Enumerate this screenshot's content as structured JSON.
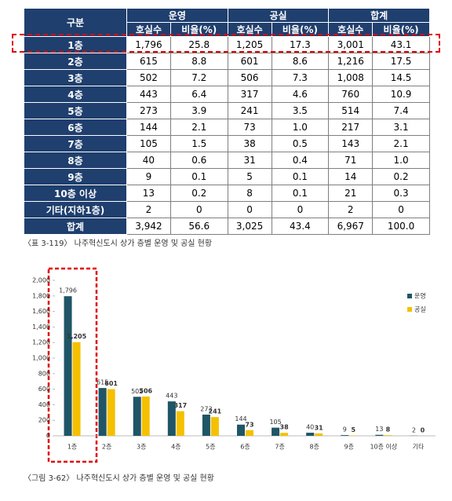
{
  "table": {
    "header": {
      "corner": "구분",
      "groups": [
        "운영",
        "공실",
        "합계"
      ],
      "sub": [
        "호실수",
        "비율(%)",
        "호실수",
        "비율(%)",
        "호실수",
        "비율(%)"
      ]
    },
    "rows": [
      [
        "1층",
        "1,796",
        "25.8",
        "1,205",
        "17.3",
        "3,001",
        "43.1"
      ],
      [
        "2층",
        "615",
        "8.8",
        "601",
        "8.6",
        "1,216",
        "17.5"
      ],
      [
        "3층",
        "502",
        "7.2",
        "506",
        "7.3",
        "1,008",
        "14.5"
      ],
      [
        "4층",
        "443",
        "6.4",
        "317",
        "4.6",
        "760",
        "10.9"
      ],
      [
        "5층",
        "273",
        "3.9",
        "241",
        "3.5",
        "514",
        "7.4"
      ],
      [
        "6층",
        "144",
        "2.1",
        "73",
        "1.0",
        "217",
        "3.1"
      ],
      [
        "7층",
        "105",
        "1.5",
        "38",
        "0.5",
        "143",
        "2.1"
      ],
      [
        "8층",
        "40",
        "0.6",
        "31",
        "0.4",
        "71",
        "1.0"
      ],
      [
        "9층",
        "9",
        "0.1",
        "5",
        "0.1",
        "14",
        "0.2"
      ],
      [
        "10층 이상",
        "13",
        "0.2",
        "8",
        "0.1",
        "21",
        "0.3"
      ],
      [
        "기타(지하1층)",
        "2",
        "0",
        "0",
        "0",
        "2",
        "0"
      ],
      [
        "합계",
        "3,942",
        "56.6",
        "3,025",
        "43.4",
        "6,967",
        "100.0"
      ]
    ]
  },
  "table_caption": "〈표 3-119〉 나주혁신도시 상가 층별 운영 및 공실 현황",
  "chart_data": {
    "type": "bar",
    "categories": [
      "1층",
      "2층",
      "3층",
      "4층",
      "5층",
      "6층",
      "7층",
      "8층",
      "9층",
      "10층 이상",
      "기타"
    ],
    "series": [
      {
        "name": "운영",
        "color": "#1f5566",
        "values": [
          1796,
          615,
          502,
          443,
          273,
          144,
          105,
          40,
          9,
          13,
          2
        ],
        "value_labels": [
          "1,796",
          "615",
          "502",
          "443",
          "273",
          "144",
          "105",
          "40",
          "9",
          "13",
          "2"
        ]
      },
      {
        "name": "공실",
        "color": "#f5c000",
        "values": [
          1205,
          601,
          506,
          317,
          241,
          73,
          38,
          31,
          5,
          8,
          0
        ],
        "value_labels": [
          "1,205",
          "601",
          "506",
          "317",
          "241",
          "73",
          "38",
          "31",
          "5",
          "8",
          "0"
        ]
      }
    ],
    "ylim": [
      0,
      2000
    ],
    "yticks": [
      0,
      200,
      400,
      600,
      800,
      {
        "value": 1000,
        "label": "1,000"
      },
      {
        "value": 1200,
        "label": "1,200"
      },
      {
        "value": 1400,
        "label": "1,400"
      },
      {
        "value": 1600,
        "label": "1,600"
      },
      {
        "value": 1800,
        "label": "1,800"
      },
      {
        "value": 2000,
        "label": "2,000"
      }
    ],
    "grid": false,
    "legend": "top-right"
  },
  "chart_caption": "〈그림 3-62〉 나주혁신도시 상가 층별 운영 및 공실 현황"
}
